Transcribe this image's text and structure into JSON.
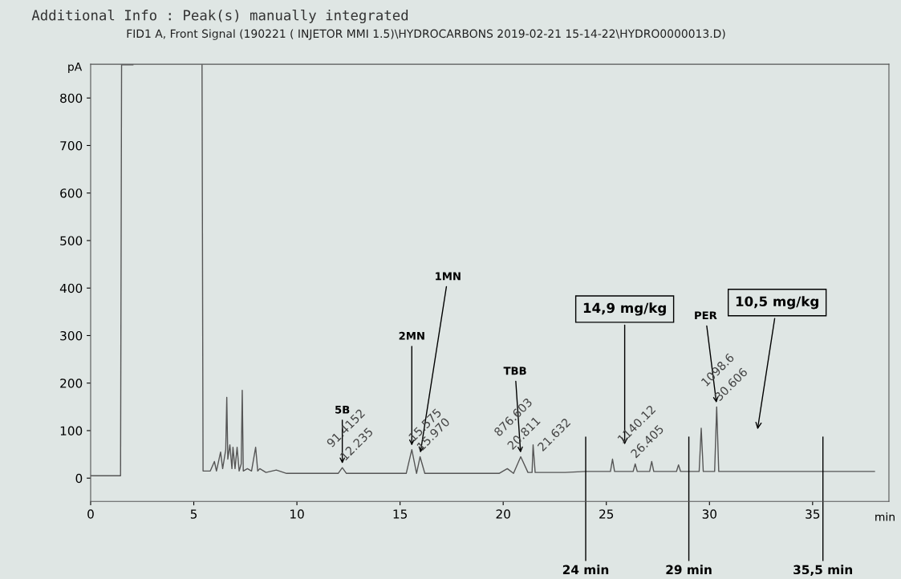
{
  "chart_data": {
    "type": "line",
    "title": "Additional Info : Peak(s) manually integrated",
    "subtitle": "FID1 A, Front Signal (190221 ( INJETOR MMI 1.5)\\HYDROCARBONS 2019-02-21 15-14-22\\HYDRO0000013.D)",
    "xlabel": "min",
    "ylabel": "pA",
    "series": [
      {
        "color": "#555555",
        "x": [
          0,
          1.45,
          1.5,
          2.05,
          2.1,
          5.4,
          5.45,
          5.8,
          6.0,
          6.1,
          6.3,
          6.4,
          6.55,
          6.6,
          6.65,
          6.75,
          6.85,
          6.9,
          7.0,
          7.1,
          7.2,
          7.3,
          7.35,
          7.4,
          7.6,
          7.8,
          8.0,
          8.1,
          8.2,
          8.5,
          9.0,
          9.5,
          10.0,
          11.0,
          12.0,
          12.2,
          12.4,
          13.0,
          15.3,
          15.57,
          15.8,
          15.97,
          16.2,
          17.0,
          19.8,
          20.2,
          20.5,
          20.85,
          21.2,
          21.4,
          21.45,
          21.55,
          23.0,
          24.0,
          25.2,
          25.3,
          25.4,
          26.3,
          26.4,
          26.5,
          27.1,
          27.2,
          27.3,
          28.4,
          28.5,
          28.6,
          29.5,
          29.6,
          29.7,
          30.25,
          30.35,
          30.45,
          31.0,
          35.5,
          38.0
        ],
        "values": [
          5,
          5,
          870,
          870,
          null,
          870,
          15,
          15,
          35,
          15,
          55,
          20,
          60,
          170,
          40,
          70,
          20,
          65,
          20,
          65,
          15,
          30,
          185,
          15,
          20,
          15,
          65,
          15,
          20,
          12,
          17,
          10,
          10,
          10,
          10,
          22,
          10,
          10,
          10,
          60,
          10,
          45,
          10,
          10,
          10,
          20,
          10,
          45,
          12,
          12,
          70,
          12,
          12,
          14,
          14,
          40,
          14,
          14,
          30,
          14,
          14,
          35,
          14,
          14,
          28,
          14,
          14,
          105,
          14,
          14,
          150,
          14,
          14,
          14,
          14
        ]
      }
    ],
    "xlim": [
      0,
      38.7
    ],
    "ylim": [
      -49,
      871
    ],
    "xticks": [
      0,
      5,
      10,
      15,
      20,
      25,
      30,
      35
    ],
    "yticks": [
      0,
      100,
      200,
      300,
      400,
      500,
      600,
      700,
      800
    ],
    "ref_lines": [
      {
        "axis": "x",
        "value": 24,
        "label": "24 min"
      },
      {
        "axis": "x",
        "value": 29,
        "label": "29 min"
      },
      {
        "axis": "x",
        "value": 35.5,
        "label": "35,5 min"
      }
    ],
    "annotations": [
      {
        "text": "5B",
        "x": 12.2,
        "y": 22
      },
      {
        "text": "2MN",
        "x": 15.57,
        "y": 60
      },
      {
        "text": "1MN",
        "x": 15.97,
        "y": 45
      },
      {
        "text": "TBB",
        "x": 20.85,
        "y": 45
      },
      "14,9 mg/kg",
      {
        "text": "PER",
        "x": 30.35,
        "y": 150
      },
      "10,5 mg/kg",
      {
        "text": "12.235",
        "x": 12.2,
        "y": 22
      },
      {
        "text": "91.4152",
        "x": 12.2,
        "y": 22
      },
      {
        "text": "15.575",
        "x": 15.57,
        "y": 60
      },
      {
        "text": "15.970",
        "x": 15.97,
        "y": 45
      },
      {
        "text": "20.811",
        "x": 20.85,
        "y": 45
      },
      {
        "text": "876.603",
        "x": 20.85,
        "y": 45
      },
      {
        "text": "21.632",
        "x": 21.45,
        "y": 70
      },
      {
        "text": "26.405",
        "x": 26.4,
        "y": 30
      },
      {
        "text": "1140.12",
        "x": 26.4,
        "y": 30
      },
      {
        "text": "30.606",
        "x": 30.35,
        "y": 150
      },
      {
        "text": "1098.6",
        "x": 30.35,
        "y": 150
      }
    ],
    "grid": false,
    "legend": false
  }
}
